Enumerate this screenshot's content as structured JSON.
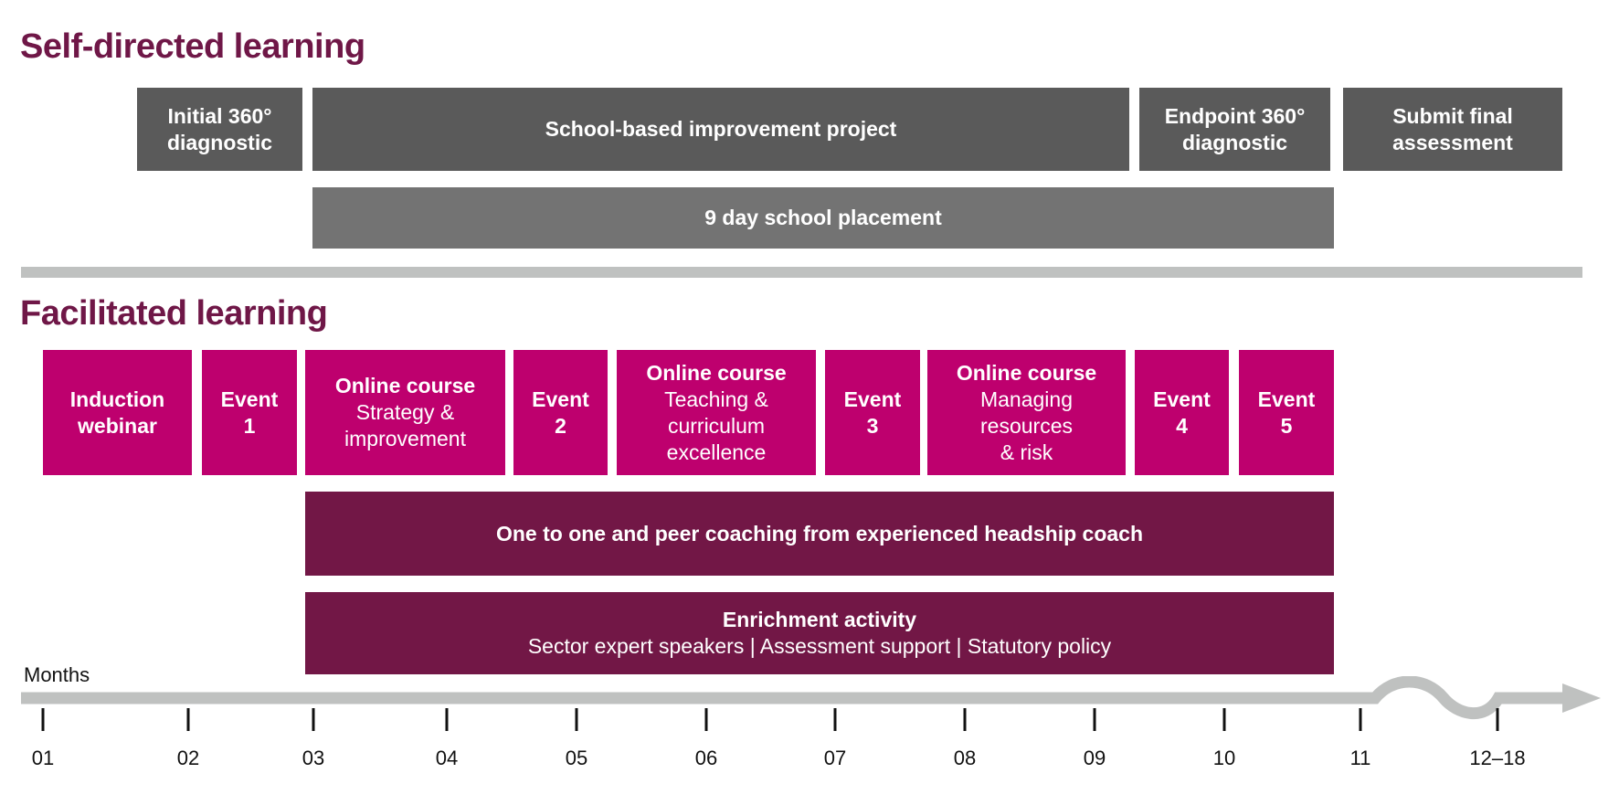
{
  "self_directed": {
    "title": "Self-directed learning",
    "boxes": [
      {
        "line1": "Initial 360°",
        "line2": "diagnostic"
      },
      {
        "line1": "School-based improvement project"
      },
      {
        "line1": "Endpoint 360°",
        "line2": "diagnostic"
      },
      {
        "line1": "Submit final",
        "line2": "assessment"
      }
    ],
    "placement": "9 day school placement"
  },
  "facilitated": {
    "title": "Facilitated learning",
    "boxes": [
      {
        "line1": "Induction",
        "line2": "webinar"
      },
      {
        "line1": "Event",
        "line2": "1"
      },
      {
        "heading": "Online course",
        "line1": "Strategy &",
        "line2": "improvement"
      },
      {
        "line1": "Event",
        "line2": "2"
      },
      {
        "heading": "Online course",
        "line1": "Teaching &",
        "line2": "curriculum",
        "line3": "excellence"
      },
      {
        "line1": "Event",
        "line2": "3"
      },
      {
        "heading": "Online course",
        "line1": "Managing",
        "line2": "resources",
        "line3": "& risk"
      },
      {
        "line1": "Event",
        "line2": "4"
      },
      {
        "line1": "Event",
        "line2": "5"
      }
    ],
    "coaching": "One to one and peer coaching from experienced headship coach",
    "enrichment": {
      "heading": "Enrichment activity",
      "detail": "Sector expert speakers | Assessment support | Statutory policy"
    }
  },
  "timeline": {
    "label": "Months",
    "ticks": [
      "01",
      "02",
      "03",
      "04",
      "05",
      "06",
      "07",
      "08",
      "09",
      "10",
      "11",
      "12–18"
    ]
  },
  "colors": {
    "title": "#6f1747",
    "dark_gray": "#5a5a5a",
    "mid_gray": "#737373",
    "magenta": "#be006e",
    "plum": "#721746",
    "axis": "#bfc1c0"
  }
}
